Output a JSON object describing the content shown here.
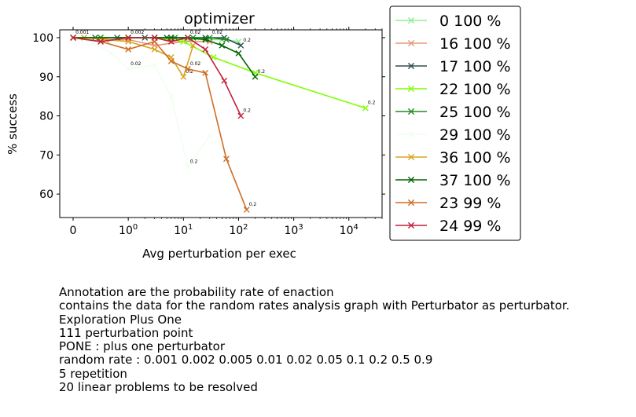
{
  "chart_data": {
    "type": "line",
    "title": "optimizer",
    "xlabel": "Avg perturbation per exec",
    "ylabel": "% success",
    "xscale": "symlog",
    "xlim": [
      -0.7,
      40000
    ],
    "ylim": [
      54,
      102
    ],
    "xticks": [
      {
        "value": 0,
        "label": "0"
      },
      {
        "value": 1,
        "label": "10^0"
      },
      {
        "value": 10,
        "label": "10^1"
      },
      {
        "value": 100,
        "label": "10^2"
      },
      {
        "value": 1000,
        "label": "10^3"
      },
      {
        "value": 10000,
        "label": "10^4"
      }
    ],
    "yticks": [
      60,
      70,
      80,
      90,
      100
    ],
    "legend_position": "right",
    "series": [
      {
        "name": "0 100 %",
        "color": "#90ee90",
        "x": [
          0.001,
          0.5,
          1,
          3,
          5,
          12,
          25,
          50,
          100
        ],
        "y": [
          100,
          100,
          100,
          100,
          100,
          99.5,
          99.5,
          99.5,
          99
        ],
        "annotations": []
      },
      {
        "name": "16 100 %",
        "color": "#e9967a",
        "x": [
          0.001,
          0.2,
          0.6,
          1,
          3,
          10,
          30
        ],
        "y": [
          100,
          100,
          99.5,
          99.5,
          98,
          99,
          99
        ],
        "annotations": []
      },
      {
        "name": "17 100 %",
        "color": "#2f4f4f",
        "x": [
          0.001,
          0.4,
          0.8,
          2,
          5,
          12,
          25,
          55,
          110
        ],
        "y": [
          100,
          100,
          100,
          100,
          100,
          100,
          100,
          100,
          98
        ],
        "annotations": [
          {
            "x": 30,
            "y": 100,
            "text": "0.02"
          },
          {
            "x": 110,
            "y": 98,
            "text": "0.2"
          }
        ]
      },
      {
        "name": "22 100 %",
        "color": "#7fff00",
        "x": [
          0.001,
          0.5,
          1,
          3,
          10,
          35,
          200,
          20000
        ],
        "y": [
          100,
          100,
          100,
          100,
          99,
          95,
          91,
          82
        ],
        "annotations": [
          {
            "x": 20000,
            "y": 82,
            "text": "0.2"
          }
        ]
      },
      {
        "name": "25 100 %",
        "color": "#228b22",
        "x": [
          0.001,
          0.5,
          1,
          3,
          7,
          15,
          30,
          60
        ],
        "y": [
          100,
          100,
          100,
          100,
          100,
          100,
          100,
          99.5
        ],
        "annotations": []
      },
      {
        "name": "29 100 %",
        "color": "#f0fff0",
        "x": [
          0.001,
          0.3,
          0.7,
          1,
          3,
          6,
          12,
          30
        ],
        "y": [
          100,
          99,
          96,
          92,
          93,
          85,
          67,
          75
        ],
        "annotations": [
          {
            "x": 1,
            "y": 92,
            "text": "0.02"
          },
          {
            "x": 12,
            "y": 67,
            "text": "0.2"
          }
        ]
      },
      {
        "name": "36 100 %",
        "color": "#daa520",
        "x": [
          0.001,
          0.2,
          0.6,
          1,
          3,
          6,
          10,
          15
        ],
        "y": [
          100,
          100,
          99.5,
          99,
          97,
          95,
          90,
          98
        ],
        "annotations": [
          {
            "x": 0.001,
            "y": 100,
            "text": "0.001"
          },
          {
            "x": 10,
            "y": 90,
            "text": "0.2"
          }
        ]
      },
      {
        "name": "37 100 %",
        "color": "#006400",
        "x": [
          0.001,
          1,
          3,
          6,
          12,
          25,
          50,
          100,
          200
        ],
        "y": [
          100,
          100,
          100,
          100,
          100,
          99.5,
          98,
          96,
          90
        ],
        "annotations": [
          {
            "x": 200,
            "y": 90,
            "text": "0.2"
          }
        ]
      },
      {
        "name": "23 99 %",
        "color": "#cd6d23",
        "x": [
          0.001,
          0.5,
          1,
          3,
          6,
          12,
          25,
          60,
          140
        ],
        "y": [
          100,
          99,
          97,
          99,
          94,
          92,
          91,
          69,
          56
        ],
        "annotations": [
          {
            "x": 12,
            "y": 92,
            "text": "0.02"
          },
          {
            "x": 140,
            "y": 56,
            "text": "0.2"
          }
        ]
      },
      {
        "name": "24 99 %",
        "color": "#c21f3a",
        "x": [
          0.001,
          0.5,
          1,
          3,
          6,
          12,
          25,
          55,
          110
        ],
        "y": [
          100,
          99,
          100,
          100,
          99,
          100,
          97,
          89,
          80
        ],
        "annotations": [
          {
            "x": 1,
            "y": 100,
            "text": "0.002"
          },
          {
            "x": 12,
            "y": 100,
            "text": "0.02"
          },
          {
            "x": 110,
            "y": 80,
            "text": "0.2"
          }
        ]
      }
    ]
  },
  "notes": [
    "Annotation are the probability rate of enaction",
    "contains the data for the random rates analysis graph with Perturbator as perturbator.",
    "Exploration Plus One",
    "111 perturbation point",
    "PONE : plus one perturbator",
    "random rate : 0.001 0.002 0.005 0.01 0.02 0.05 0.1 0.2 0.5 0.9",
    "5 repetition",
    "20 linear problems to be resolved"
  ]
}
